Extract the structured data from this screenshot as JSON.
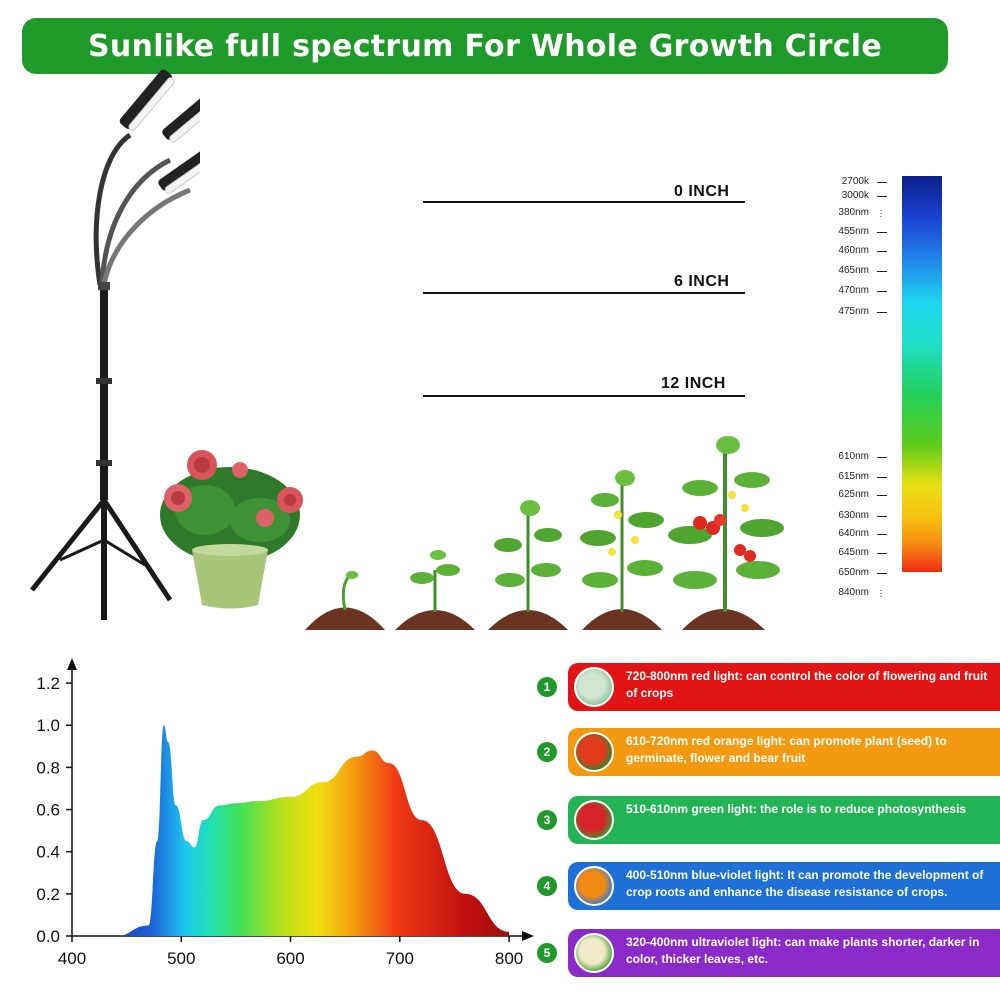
{
  "banner": {
    "title": "Sunlike full spectrum For Whole Growth Circle"
  },
  "heights": [
    {
      "label": "0 INCH"
    },
    {
      "label": "6 INCH"
    },
    {
      "label": "12 INCH"
    }
  ],
  "wavelength_scale": {
    "labels": [
      "2700k",
      "3000k",
      "380nm",
      "455nm",
      "460nm",
      "465nm",
      "470nm",
      "475nm",
      "610nm",
      "615nm",
      "625nm",
      "630nm",
      "640nm",
      "645nm",
      "650nm",
      "840nm"
    ]
  },
  "info_items": [
    {
      "number": "1",
      "text": "720-800nm red light: can control the color of flowering and fruit of crops",
      "color": "#e01414",
      "thumb": "succulent-icon"
    },
    {
      "number": "2",
      "text": "610-720nm red orange light: can promote plant (seed) to germinate, flower and bear fruit",
      "color": "#f39a12",
      "thumb": "tomato-icon"
    },
    {
      "number": "3",
      "text": "510-610nm green light: the role is to reduce photosynthesis",
      "color": "#22b355",
      "thumb": "strawberry-icon"
    },
    {
      "number": "4",
      "text": "400-510nm blue-violet light: It can promote the development of crop roots and enhance the disease resistance of crops.",
      "color": "#1e6fd6",
      "thumb": "flower-icon"
    },
    {
      "number": "5",
      "text": "320-400nm ultraviolet light: can make plants shorter, darker in color, thicker leaves, etc.",
      "color": "#8a2bc9",
      "thumb": "seedling-icon"
    }
  ],
  "chart_data": {
    "type": "area",
    "x": [
      400,
      440,
      470,
      478,
      484,
      488,
      495,
      505,
      512,
      520,
      535,
      550,
      570,
      600,
      630,
      660,
      675,
      690,
      720,
      760,
      800
    ],
    "y": [
      0.0,
      0.0,
      0.05,
      0.45,
      1.0,
      0.92,
      0.62,
      0.45,
      0.42,
      0.55,
      0.62,
      0.63,
      0.64,
      0.66,
      0.73,
      0.85,
      0.88,
      0.82,
      0.55,
      0.2,
      0.02
    ],
    "xticks": [
      "400",
      "500",
      "600",
      "700",
      "800"
    ],
    "yticks": [
      "0.0",
      "0.2",
      "0.4",
      "0.6",
      "0.8",
      "1.0",
      "1.2"
    ],
    "xlim": [
      400,
      810
    ],
    "ylim": [
      0,
      1.3
    ],
    "grid": false
  }
}
